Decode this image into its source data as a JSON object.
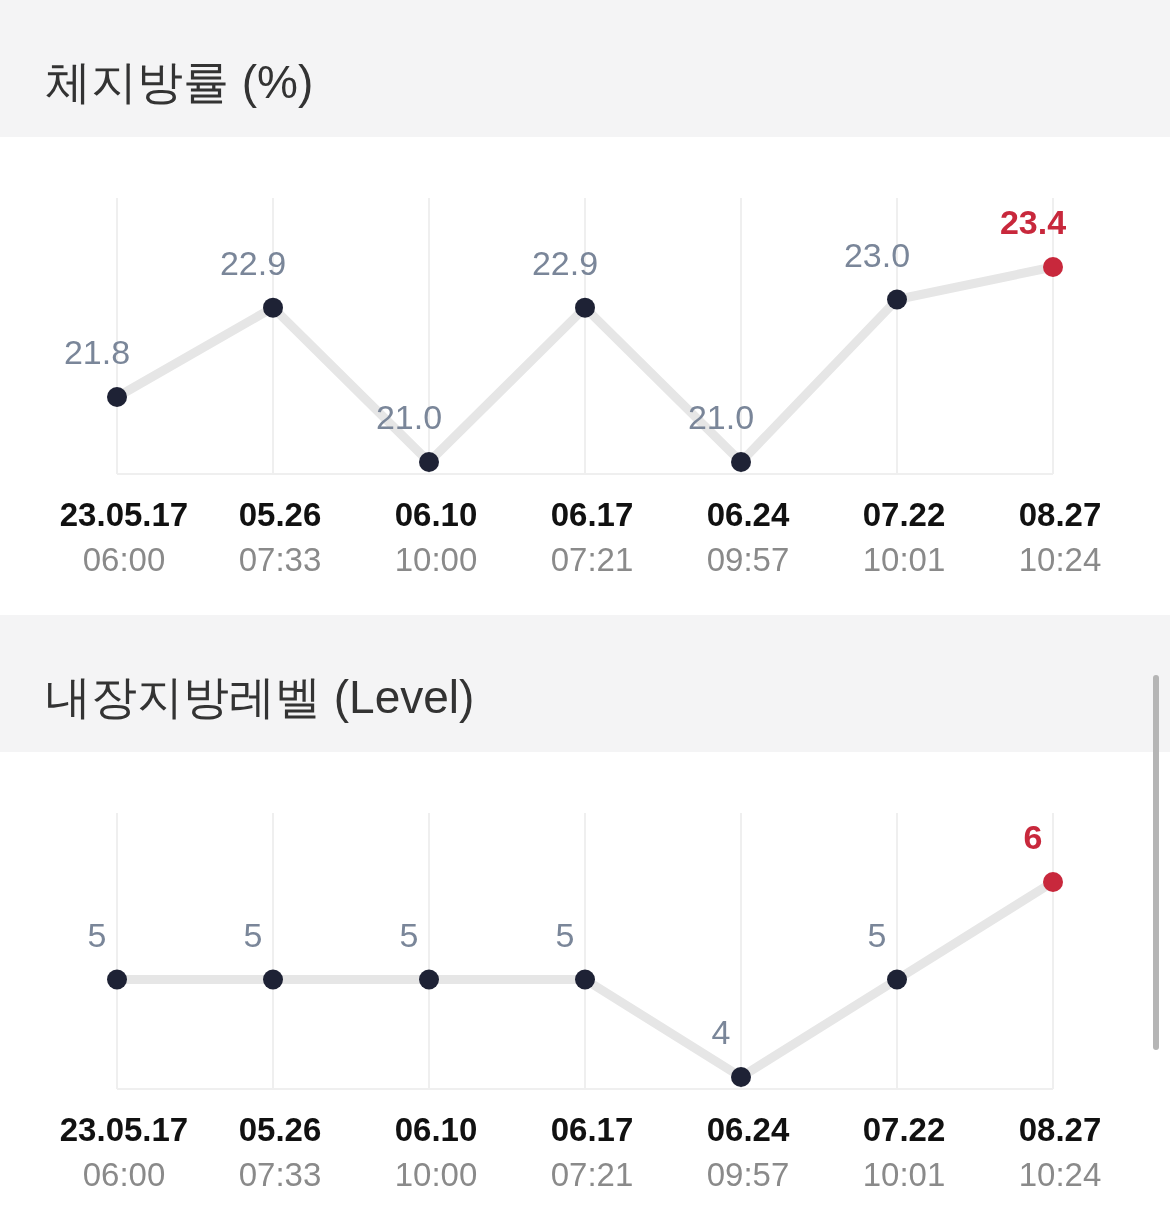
{
  "chart_data": [
    {
      "type": "line",
      "title": "체지방률 (%)",
      "categories": [
        "23.05.17\n06:00",
        "05.26\n07:33",
        "06.10\n10:00",
        "06.17\n07:21",
        "06.24\n09:57",
        "07.22\n10:01",
        "08.27\n10:24"
      ],
      "series": [
        {
          "color": "#e6e6e6",
          "colors": [
            "#1e2235",
            "#1e2235",
            "#1e2235",
            "#1e2235",
            "#1e2235",
            "#1e2235",
            "#c8283c"
          ],
          "values": [
            21.8,
            22.9,
            21.0,
            22.9,
            21.0,
            23.0,
            23.4
          ],
          "value_labels": [
            "21.8",
            "22.9",
            "21.0",
            "22.9",
            "21.0",
            "23.0",
            "23.4"
          ]
        }
      ],
      "grid": "x",
      "marker": "circle"
    },
    {
      "type": "line",
      "title": "내장지방레벨 (Level)",
      "categories": [
        "23.05.17\n06:00",
        "05.26\n07:33",
        "06.10\n10:00",
        "06.17\n07:21",
        "06.24\n09:57",
        "07.22\n10:01",
        "08.27\n10:24"
      ],
      "series": [
        {
          "color": "#e6e6e6",
          "colors": [
            "#1e2235",
            "#1e2235",
            "#1e2235",
            "#1e2235",
            "#1e2235",
            "#1e2235",
            "#c8283c"
          ],
          "values": [
            5,
            5,
            5,
            5,
            4,
            5,
            6
          ],
          "value_labels": [
            "5",
            "5",
            "5",
            "5",
            "4",
            "5",
            "6"
          ]
        }
      ],
      "grid": "x",
      "marker": "circle"
    }
  ]
}
